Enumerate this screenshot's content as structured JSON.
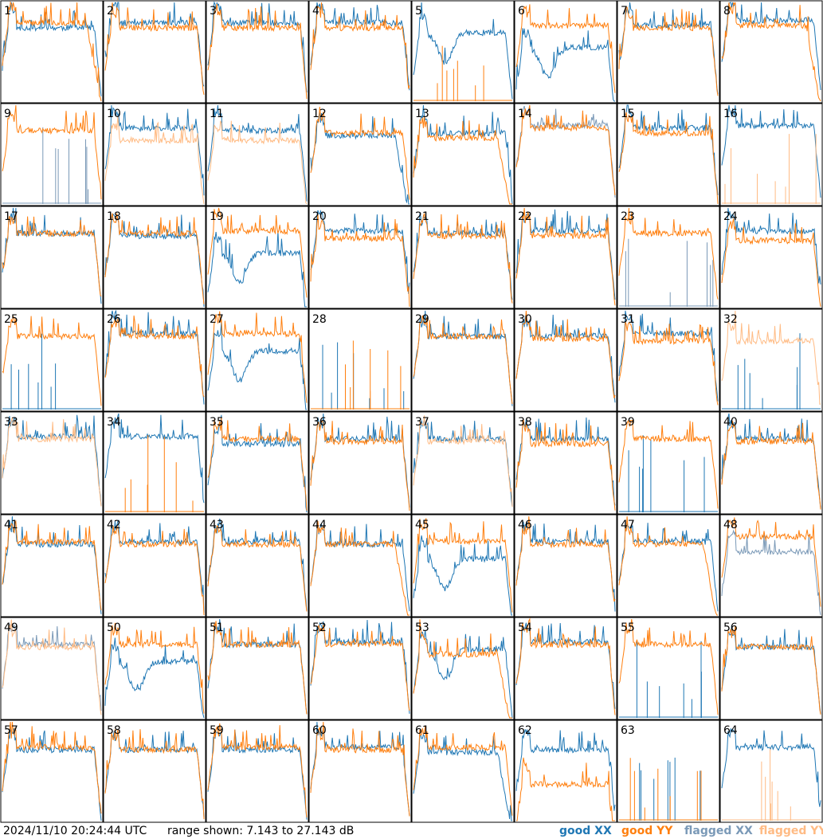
{
  "timestamp": "2024/11/10 20:24:44 UTC",
  "range_text": "range shown: 7.143 to 27.143 dB",
  "legend": [
    {
      "label": "good XX",
      "color": "#1f77b4"
    },
    {
      "label": "good YY",
      "color": "#ff7f0e"
    },
    {
      "label": "flagged XX",
      "color": "#7a99b7"
    },
    {
      "label": "flagged YY",
      "color": "#ffbb84"
    }
  ],
  "chart_data": {
    "type": "line",
    "layout": "8x8 small multiples",
    "ylim": [
      7.143,
      27.143
    ],
    "y_unit": "dB",
    "panel_labels": [
      "1",
      "2",
      "3",
      "4",
      "5",
      "6",
      "7",
      "8",
      "9",
      "10",
      "11",
      "12",
      "13",
      "14",
      "15",
      "16",
      "17",
      "18",
      "19",
      "20",
      "21",
      "22",
      "23",
      "24",
      "25",
      "26",
      "27",
      "28",
      "29",
      "30",
      "31",
      "32",
      "33",
      "34",
      "35",
      "36",
      "37",
      "38",
      "39",
      "40",
      "41",
      "42",
      "43",
      "44",
      "45",
      "46",
      "47",
      "48",
      "49",
      "50",
      "51",
      "52",
      "53",
      "54",
      "55",
      "56",
      "57",
      "58",
      "59",
      "60",
      "61",
      "62",
      "63",
      "64"
    ],
    "series": [
      {
        "name": "good XX",
        "color": "#1f77b4"
      },
      {
        "name": "good YY",
        "color": "#ff7f0e"
      },
      {
        "name": "flagged XX",
        "color": "#7a99b7"
      },
      {
        "name": "flagged YY",
        "color": "#ffbb84"
      }
    ],
    "panels": [
      {
        "xx": "good",
        "yy": "good",
        "xx_level": 22,
        "yy_level": 23,
        "xx_shape": "flat",
        "yy_shape": "rolloff"
      },
      {
        "xx": "good",
        "yy": "good",
        "xx_level": 23,
        "yy_level": 22,
        "xx_shape": "flat",
        "yy_shape": "flat"
      },
      {
        "xx": "good",
        "yy": "good",
        "xx_level": 23,
        "yy_level": 22,
        "xx_shape": "flat",
        "yy_shape": "flat"
      },
      {
        "xx": "good",
        "yy": "good",
        "xx_level": 23,
        "yy_level": 22,
        "xx_shape": "flat",
        "yy_shape": "flat"
      },
      {
        "xx": "good",
        "yy": "good",
        "xx_level": 21,
        "yy_level": 7.143,
        "xx_shape": "dip",
        "yy_shape": "spikes"
      },
      {
        "xx": "good",
        "yy": "good",
        "xx_level": 18,
        "yy_level": 22.5,
        "xx_shape": "dip",
        "yy_shape": "flat"
      },
      {
        "xx": "good",
        "yy": "good",
        "xx_level": 22.5,
        "yy_level": 22,
        "xx_shape": "flat",
        "yy_shape": "flat"
      },
      {
        "xx": "good",
        "yy": "good",
        "xx_level": 23.5,
        "yy_level": 22.5,
        "xx_shape": "flat",
        "yy_shape": "rolloff"
      },
      {
        "xx": "flagged",
        "yy": "good",
        "xx_level": 7.143,
        "yy_level": 22,
        "xx_shape": "spikes",
        "yy_shape": "flat"
      },
      {
        "xx": "good",
        "yy": "flagged",
        "xx_level": 22.5,
        "yy_level": 20,
        "xx_shape": "flat",
        "yy_shape": "flat"
      },
      {
        "xx": "good",
        "yy": "flagged",
        "xx_level": 22,
        "yy_level": 20,
        "xx_shape": "flat",
        "yy_shape": "flat"
      },
      {
        "xx": "good",
        "yy": "good",
        "xx_level": 21,
        "yy_level": 21.5,
        "xx_shape": "rolloff",
        "yy_shape": "flat"
      },
      {
        "xx": "good",
        "yy": "good",
        "xx_level": 21.5,
        "yy_level": 20.5,
        "xx_shape": "flat",
        "yy_shape": "rolloff"
      },
      {
        "xx": "flagged",
        "yy": "good",
        "xx_level": 23,
        "yy_level": 22.5,
        "xx_shape": "flat",
        "yy_shape": "flat"
      },
      {
        "xx": "good",
        "yy": "good",
        "xx_level": 22.5,
        "yy_level": 21.5,
        "xx_shape": "flat",
        "yy_shape": "flat"
      },
      {
        "xx": "good",
        "yy": "flagged",
        "xx_level": 23,
        "yy_level": 7.143,
        "xx_shape": "flat",
        "yy_shape": "spikes"
      },
      {
        "xx": "good",
        "yy": "good",
        "xx_level": 22,
        "yy_level": 22,
        "xx_shape": "flat",
        "yy_shape": "flat"
      },
      {
        "xx": "good",
        "yy": "good",
        "xx_level": 21.5,
        "yy_level": 22,
        "xx_shape": "flat",
        "yy_shape": "flat"
      },
      {
        "xx": "good",
        "yy": "good",
        "xx_level": 18,
        "yy_level": 22.5,
        "xx_shape": "dip",
        "yy_shape": "flat"
      },
      {
        "xx": "good",
        "yy": "good",
        "xx_level": 22.5,
        "yy_level": 21,
        "xx_shape": "flat",
        "yy_shape": "flat"
      },
      {
        "xx": "good",
        "yy": "good",
        "xx_level": 22,
        "yy_level": 21.5,
        "xx_shape": "flat",
        "yy_shape": "flat"
      },
      {
        "xx": "good",
        "yy": "good",
        "xx_level": 22.5,
        "yy_level": 21.5,
        "xx_shape": "flat",
        "yy_shape": "flat"
      },
      {
        "xx": "flagged",
        "yy": "good",
        "xx_level": 12,
        "yy_level": 22,
        "xx_shape": "spikes",
        "yy_shape": "flat"
      },
      {
        "xx": "good",
        "yy": "good",
        "xx_level": 22.5,
        "yy_level": 20.5,
        "xx_shape": "flat",
        "yy_shape": "flat"
      },
      {
        "xx": "good",
        "yy": "good",
        "xx_level": 7.143,
        "yy_level": 22,
        "xx_shape": "spikes",
        "yy_shape": "flat"
      },
      {
        "xx": "good",
        "yy": "good",
        "xx_level": 22.5,
        "yy_level": 22,
        "xx_shape": "flat",
        "yy_shape": "flat"
      },
      {
        "xx": "good",
        "yy": "good",
        "xx_level": 19,
        "yy_level": 22.5,
        "xx_shape": "dip",
        "yy_shape": "flat"
      },
      {
        "xx": "good",
        "yy": "good",
        "xx_level": 7.143,
        "yy_level": 7.143,
        "xx_shape": "spikes",
        "yy_shape": "spikes"
      },
      {
        "xx": "good",
        "yy": "good",
        "xx_level": 22,
        "yy_level": 22,
        "xx_shape": "flat",
        "yy_shape": "flat"
      },
      {
        "xx": "good",
        "yy": "good",
        "xx_level": 22,
        "yy_level": 21.5,
        "xx_shape": "flat",
        "yy_shape": "flat"
      },
      {
        "xx": "good",
        "yy": "good",
        "xx_level": 22.5,
        "yy_level": 21,
        "xx_shape": "flat",
        "yy_shape": "flat"
      },
      {
        "xx": "good",
        "yy": "flagged",
        "xx_level": 7.143,
        "yy_level": 21,
        "xx_shape": "spikes",
        "yy_shape": "flat"
      },
      {
        "xx": "good",
        "yy": "flagged",
        "xx_level": 22.5,
        "yy_level": 22,
        "xx_shape": "flat",
        "yy_shape": "flat"
      },
      {
        "xx": "good",
        "yy": "good",
        "xx_level": 22.5,
        "yy_level": 7.143,
        "xx_shape": "flat",
        "yy_shape": "spikes"
      },
      {
        "xx": "good",
        "yy": "good",
        "xx_level": 21,
        "yy_level": 22,
        "xx_shape": "flat",
        "yy_shape": "flat"
      },
      {
        "xx": "good",
        "yy": "good",
        "xx_level": 22,
        "yy_level": 21.5,
        "xx_shape": "flat",
        "yy_shape": "flat"
      },
      {
        "xx": "good",
        "yy": "flagged",
        "xx_level": 22,
        "yy_level": 21.5,
        "xx_shape": "flat",
        "yy_shape": "flat"
      },
      {
        "xx": "good",
        "yy": "good",
        "xx_level": 22,
        "yy_level": 21,
        "xx_shape": "flat",
        "yy_shape": "flat"
      },
      {
        "xx": "good",
        "yy": "good",
        "xx_level": 7.143,
        "yy_level": 22,
        "xx_shape": "spikes",
        "yy_shape": "flat"
      },
      {
        "xx": "good",
        "yy": "good",
        "xx_level": 22,
        "yy_level": 21.5,
        "xx_shape": "flat",
        "yy_shape": "flat"
      },
      {
        "xx": "good",
        "yy": "good",
        "xx_level": 21.5,
        "yy_level": 22,
        "xx_shape": "flat",
        "yy_shape": "flat"
      },
      {
        "xx": "good",
        "yy": "good",
        "xx_level": 22,
        "yy_level": 21.5,
        "xx_shape": "flat",
        "yy_shape": "flat"
      },
      {
        "xx": "good",
        "yy": "good",
        "xx_level": 22,
        "yy_level": 21.5,
        "xx_shape": "flat",
        "yy_shape": "flat"
      },
      {
        "xx": "good",
        "yy": "good",
        "xx_level": 21.5,
        "yy_level": 21.5,
        "xx_shape": "flat",
        "yy_shape": "rolloff"
      },
      {
        "xx": "good",
        "yy": "good",
        "xx_level": 18.5,
        "yy_level": 22,
        "xx_shape": "dip",
        "yy_shape": "flat"
      },
      {
        "xx": "good",
        "yy": "good",
        "xx_level": 22,
        "yy_level": 21.5,
        "xx_shape": "flat",
        "yy_shape": "flat"
      },
      {
        "xx": "good",
        "yy": "good",
        "xx_level": 22,
        "yy_level": 21.5,
        "xx_shape": "flat",
        "yy_shape": "rolloff"
      },
      {
        "xx": "flagged",
        "yy": "good",
        "xx_level": 20,
        "yy_level": 23,
        "xx_shape": "flat",
        "yy_shape": "flat"
      },
      {
        "xx": "flagged",
        "yy": "flagged",
        "xx_level": 22,
        "yy_level": 21.5,
        "xx_shape": "flat",
        "yy_shape": "flat"
      },
      {
        "xx": "good",
        "yy": "good",
        "xx_level": 18.5,
        "yy_level": 22,
        "xx_shape": "dip",
        "yy_shape": "flat"
      },
      {
        "xx": "good",
        "yy": "good",
        "xx_level": 22,
        "yy_level": 22,
        "xx_shape": "flat",
        "yy_shape": "flat"
      },
      {
        "xx": "good",
        "yy": "good",
        "xx_level": 22.5,
        "yy_level": 22,
        "xx_shape": "flat",
        "yy_shape": "flat"
      },
      {
        "xx": "good",
        "yy": "good",
        "xx_level": 21,
        "yy_level": 20,
        "xx_shape": "dip",
        "yy_shape": "rolloff"
      },
      {
        "xx": "good",
        "yy": "good",
        "xx_level": 22.5,
        "yy_level": 22,
        "xx_shape": "flat",
        "yy_shape": "flat"
      },
      {
        "xx": "good",
        "yy": "good",
        "xx_level": 7.143,
        "yy_level": 22,
        "xx_shape": "spikes",
        "yy_shape": "flat"
      },
      {
        "xx": "good",
        "yy": "good",
        "xx_level": 21.5,
        "yy_level": 21.5,
        "xx_shape": "flat",
        "yy_shape": "flat"
      },
      {
        "xx": "good",
        "yy": "good",
        "xx_level": 21.5,
        "yy_level": 22,
        "xx_shape": "flat",
        "yy_shape": "flat"
      },
      {
        "xx": "good",
        "yy": "good",
        "xx_level": 21.5,
        "yy_level": 21.5,
        "xx_shape": "flat",
        "yy_shape": "flat"
      },
      {
        "xx": "good",
        "yy": "good",
        "xx_level": 21.5,
        "yy_level": 22,
        "xx_shape": "flat",
        "yy_shape": "flat"
      },
      {
        "xx": "good",
        "yy": "good",
        "xx_level": 22,
        "yy_level": 21.5,
        "xx_shape": "flat",
        "yy_shape": "flat"
      },
      {
        "xx": "good",
        "yy": "good",
        "xx_level": 21,
        "yy_level": 22,
        "xx_shape": "rolloff",
        "yy_shape": "flat"
      },
      {
        "xx": "good",
        "yy": "good",
        "xx_level": 21.5,
        "yy_level": 14.5,
        "xx_shape": "flat",
        "yy_shape": "flat"
      },
      {
        "xx": "good",
        "yy": "good",
        "xx_level": 7.143,
        "yy_level": 7.143,
        "xx_shape": "spikes",
        "yy_shape": "spikes"
      },
      {
        "xx": "good",
        "yy": "flagged",
        "xx_level": 22,
        "yy_level": 7.143,
        "xx_shape": "flat",
        "yy_shape": "spikes"
      }
    ]
  }
}
